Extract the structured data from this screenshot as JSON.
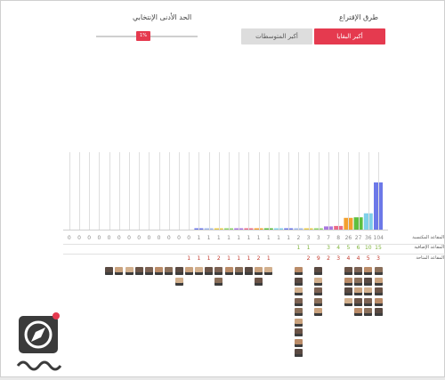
{
  "controls": {
    "method_title": "طرق الإقتراع",
    "threshold_title": "الحد الأدنى الإنتخابي",
    "btn_remainder": "أكبر البقايا",
    "btn_averages": "أكبر المتوسطات",
    "threshold_value": "1%"
  },
  "rows": {
    "total_label": "المقاعد المكتسبة",
    "complementary_label": "المقاعد الإضافية",
    "remainder_label": "المقاعد المتاحة"
  },
  "colors": {
    "accent": "#e53a4f",
    "comp": "#7db33a",
    "rem": "#c0392b"
  },
  "chart_data": {
    "type": "bar",
    "series": [
      {
        "name": "المقاعد المكتسبة",
        "values": [
          104,
          36,
          27,
          26,
          8,
          7,
          3,
          3,
          2,
          1,
          1,
          1,
          1,
          1,
          1,
          1,
          1,
          1,
          1,
          0,
          0,
          0,
          0,
          0,
          0,
          0,
          0,
          0,
          0,
          0,
          0,
          0
        ]
      }
    ],
    "complementary": [
      "15",
      "10",
      "6",
      "5",
      "4",
      "3",
      "",
      "1",
      "1",
      "",
      "",
      "",
      "",
      "",
      "",
      "",
      "",
      "",
      "",
      "",
      "",
      "",
      "",
      "",
      "",
      "",
      "",
      "",
      "",
      "",
      "",
      ""
    ],
    "remainder": [
      "3",
      "5",
      "4",
      "4",
      "3",
      "2",
      "9",
      "2",
      "",
      "",
      "",
      "1",
      "2",
      "1",
      "1",
      "1",
      "2",
      "1",
      "1",
      "1",
      "",
      "",
      "",
      "",
      "",
      "",
      "",
      "",
      "",
      "",
      "",
      ""
    ],
    "bar_colors": [
      "#6c78e8",
      "#7fd0e9",
      "#5dbf3f",
      "#f3a02f",
      "#ea6a87",
      "#a978e0",
      "#8dd46a",
      "#e7c94a",
      "#9fb7e8"
    ],
    "faces_per_column": [
      5,
      5,
      5,
      4,
      0,
      0,
      5,
      0,
      9,
      0,
      0,
      1,
      2,
      1,
      1,
      1,
      2,
      1,
      1,
      1,
      2,
      1,
      1,
      1,
      1,
      1,
      1,
      1,
      0,
      0,
      0,
      0
    ],
    "ylim": [
      0,
      104
    ]
  }
}
